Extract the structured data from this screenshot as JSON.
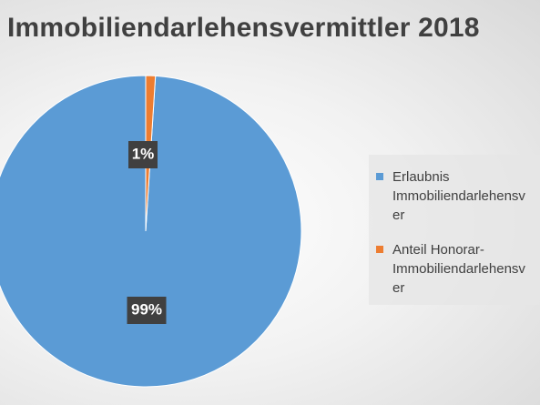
{
  "chart_data": {
    "type": "pie",
    "title": "Immobiliendarlehensvermittler 2018",
    "series": [
      {
        "name": "",
        "values": [
          99,
          1
        ]
      }
    ],
    "categories": [
      {
        "lines": [
          "Erlaubnis",
          "Immobiliendarlehensv",
          "er"
        ],
        "value": 99,
        "label": "99%",
        "color": "#5b9bd5"
      },
      {
        "lines": [
          "Anteil Honorar-",
          "Immobiliendarlehensv",
          "er"
        ],
        "value": 1,
        "label": "1%",
        "color": "#ed7d31"
      }
    ],
    "legend": "right",
    "label_box_color": "#404040"
  }
}
